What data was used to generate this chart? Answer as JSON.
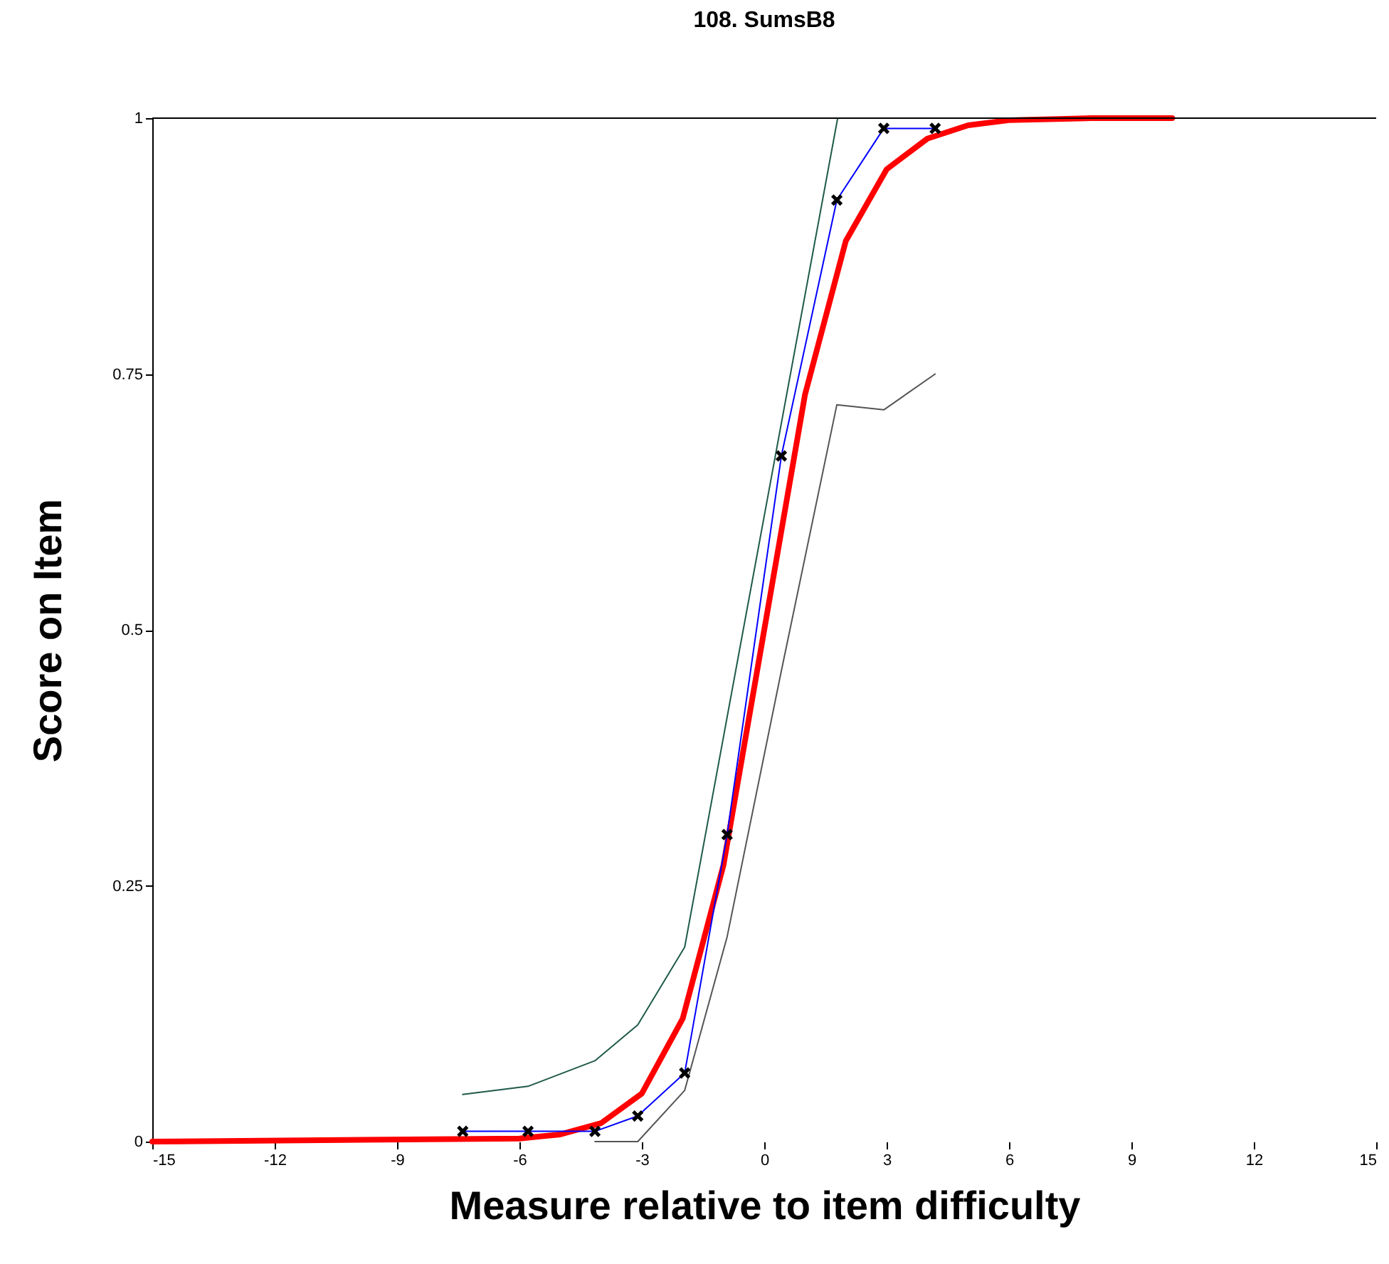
{
  "chart_data": {
    "type": "line",
    "title": "108. SumsB8",
    "xlabel": "Measure relative to item difficulty",
    "ylabel": "Score on Item",
    "xlim": [
      -15,
      15
    ],
    "xticks": [
      -15,
      -12,
      -9,
      -6,
      -3,
      0,
      3,
      6,
      9,
      12,
      15
    ],
    "ylim": [
      0,
      1
    ],
    "yticks": [
      0,
      0.25,
      0.5,
      0.75,
      1
    ],
    "grid": false,
    "series": [
      {
        "color": "#ff0000",
        "marker": "none",
        "x": [
          -15,
          -6,
          -5,
          -4,
          -3,
          -2,
          -1,
          0,
          1,
          2,
          3,
          4,
          5,
          6,
          8,
          10
        ],
        "values": [
          0,
          0.003,
          0.007,
          0.018,
          0.047,
          0.12,
          0.27,
          0.5,
          0.73,
          0.88,
          0.95,
          0.98,
          0.993,
          0.998,
          1,
          1
        ]
      },
      {
        "color": "#1e5a4a",
        "marker": "none",
        "x": [
          -7.39,
          -5.79,
          -4.15,
          -3.1,
          -1.95,
          1.8,
          2.93,
          4.19
        ],
        "values": [
          0.046,
          0.054,
          0.079,
          0.114,
          0.19,
          1,
          1,
          1
        ]
      },
      {
        "color": "#555555",
        "marker": "none",
        "x": [
          -4.15,
          -3.1,
          -1.95,
          -0.91,
          0.42,
          1.78,
          2.93,
          4.19
        ],
        "values": [
          0,
          0,
          0.05,
          0.2,
          0.46,
          0.72,
          0.715,
          0.75
        ]
      },
      {
        "color": "#0000ff",
        "marker": "cross",
        "x": [
          -7.39,
          -5.79,
          -4.15,
          -3.1,
          -1.95,
          -0.91,
          0.42,
          1.78,
          2.93,
          4.19
        ],
        "values": [
          0.01,
          0.01,
          0.01,
          0.025,
          0.067,
          0.3,
          0.67,
          0.92,
          0.99,
          0.99
        ]
      }
    ]
  }
}
